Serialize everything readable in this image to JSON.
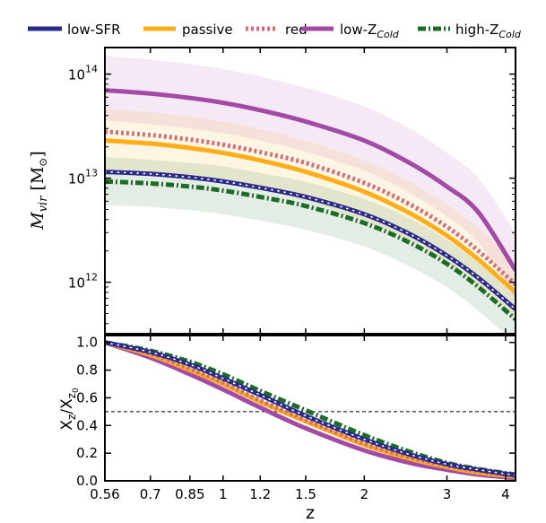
{
  "chart_data": {
    "type": "line",
    "legend_placement": "top",
    "series_styles": [
      {
        "key": "low_sfr",
        "color": "#2b2a8a",
        "dash": "solid",
        "marker_dots": true
      },
      {
        "key": "passive",
        "color": "#ffae1a",
        "dash": "solid"
      },
      {
        "key": "red",
        "color": "#cf6f78",
        "dash": "dotted"
      },
      {
        "key": "low_z",
        "color": "#a24aa6",
        "dash": "solid"
      },
      {
        "key": "high_z",
        "color": "#1c6b26",
        "dash": "dashdot"
      }
    ],
    "legend": [
      {
        "label": "low-SFR",
        "sub": ""
      },
      {
        "label": "passive",
        "sub": ""
      },
      {
        "label": "red",
        "sub": ""
      },
      {
        "label": "low-Z",
        "sub": "Cold"
      },
      {
        "label": "high-Z",
        "sub": "Cold"
      }
    ],
    "x_scale": "log",
    "x_ticks": [
      "0.56",
      "0.7",
      "0.85",
      "1",
      "1.2",
      "1.5",
      "2",
      "3",
      "4"
    ],
    "x_tick_values": [
      0.56,
      0.7,
      0.85,
      1,
      1.2,
      1.5,
      2,
      3,
      4
    ],
    "xlim": [
      0.56,
      4.2
    ],
    "xlabel": "z",
    "top": {
      "y_scale": "log",
      "ylim": [
        320000000000.0,
        180000000000000.0
      ],
      "ylabel_main": "M",
      "ylabel_sub": "vir",
      "ylabel_unit_open": "[M",
      "ylabel_unit_sub": "⊙",
      "ylabel_unit_close": "]",
      "y_tick_base": [
        "10",
        "10",
        "10"
      ],
      "y_tick_exp": [
        "12",
        "13",
        "14"
      ],
      "y_tick_values": [
        1000000000000.0,
        10000000000000.0,
        100000000000000.0
      ],
      "x": [
        0.56,
        0.7,
        0.85,
        1.0,
        1.2,
        1.5,
        2.0,
        2.5,
        3.0,
        3.5,
        4.2
      ],
      "series": {
        "low_sfr": [
          11500000000000.0,
          11000000000000.0,
          10200000000000.0,
          9300000000000.0,
          8100000000000.0,
          6600000000000.0,
          4500000000000.0,
          2900000000000.0,
          1800000000000.0,
          1100000000000.0,
          550000000000.0
        ],
        "passive": [
          23000000000000.0,
          21500000000000.0,
          19500000000000.0,
          17500000000000.0,
          14800000000000.0,
          11500000000000.0,
          7400000000000.0,
          4600000000000.0,
          2800000000000.0,
          1650000000000.0,
          800000000000.0
        ],
        "red": [
          28000000000000.0,
          26000000000000.0,
          23500000000000.0,
          21000000000000.0,
          17800000000000.0,
          14000000000000.0,
          9000000000000.0,
          5600000000000.0,
          3400000000000.0,
          2000000000000.0,
          950000000000.0
        ],
        "low_z": [
          70000000000000.0,
          65000000000000.0,
          59000000000000.0,
          53000000000000.0,
          45000000000000.0,
          35000000000000.0,
          23000000000000.0,
          14000000000000.0,
          8300000000000.0,
          4700000000000.0,
          1300000000000.0
        ],
        "high_z": [
          9300000000000.0,
          8900000000000.0,
          8300000000000.0,
          7600000000000.0,
          6600000000000.0,
          5400000000000.0,
          3700000000000.0,
          2400000000000.0,
          1500000000000.0,
          900000000000.0,
          440000000000.0
        ]
      },
      "bands": {
        "low_z": {
          "lower": [
            36000000000000.0,
            33000000000000.0,
            30000000000000.0,
            27000000000000.0,
            23000000000000.0,
            18000000000000.0,
            11800000000000.0,
            7200000000000.0,
            4300000000000.0,
            2400000000000.0,
            700000000000.0
          ],
          "upper": [
            150000000000000.0,
            138000000000000.0,
            125000000000000.0,
            112000000000000.0,
            95000000000000.0,
            74000000000000.0,
            49000000000000.0,
            30000000000000.0,
            17500000000000.0,
            10000000000000.0,
            3000000000000.0
          ]
        },
        "passive": {
          "lower": [
            12000000000000.0,
            11200000000000.0,
            10200000000000.0,
            9100000000000.0,
            7700000000000.0,
            6000000000000.0,
            3850000000000.0,
            2400000000000.0,
            1460000000000.0,
            860000000000.0,
            420000000000.0
          ],
          "upper": [
            46000000000000.0,
            43000000000000.0,
            39000000000000.0,
            35000000000000.0,
            29500000000000.0,
            23000000000000.0,
            14800000000000.0,
            9200000000000.0,
            5600000000000.0,
            3300000000000.0,
            1600000000000.0
          ]
        },
        "high_z": {
          "lower": [
            5500000000000.0,
            5300000000000.0,
            4900000000000.0,
            4500000000000.0,
            3900000000000.0,
            3200000000000.0,
            2200000000000.0,
            1420000000000.0,
            890000000000.0,
            530000000000.0,
            260000000000.0
          ],
          "upper": [
            16000000000000.0,
            15000000000000.0,
            14000000000000.0,
            13000000000000.0,
            11200000000000.0,
            9200000000000.0,
            6300000000000.0,
            4100000000000.0,
            2550000000000.0,
            1530000000000.0,
            750000000000.0
          ]
        }
      }
    },
    "bottom": {
      "ylim": [
        0.0,
        1.05
      ],
      "y_ticks": [
        "0.0",
        "0.2",
        "0.4",
        "0.6",
        "0.8",
        "1.0"
      ],
      "y_tick_values": [
        0.0,
        0.2,
        0.4,
        0.6,
        0.8,
        1.0
      ],
      "ylabel_x": "X",
      "ylabel_sub1": "z",
      "ylabel_slash": "/X",
      "ylabel_sub2": "z",
      "ylabel_sub3": "0",
      "reference_line": 0.5,
      "x": [
        0.56,
        0.7,
        0.85,
        1.0,
        1.2,
        1.5,
        2.0,
        2.5,
        3.0,
        3.5,
        4.2
      ],
      "series": {
        "low_sfr": [
          1.0,
          0.93,
          0.84,
          0.74,
          0.62,
          0.47,
          0.3,
          0.19,
          0.12,
          0.08,
          0.04
        ],
        "passive": [
          1.0,
          0.91,
          0.8,
          0.7,
          0.57,
          0.43,
          0.26,
          0.16,
          0.1,
          0.06,
          0.03
        ],
        "red": [
          1.0,
          0.92,
          0.81,
          0.71,
          0.58,
          0.44,
          0.27,
          0.17,
          0.11,
          0.07,
          0.035
        ],
        "low_z": [
          1.0,
          0.89,
          0.77,
          0.66,
          0.53,
          0.38,
          0.22,
          0.13,
          0.08,
          0.045,
          0.02
        ],
        "high_z": [
          1.0,
          0.94,
          0.86,
          0.77,
          0.65,
          0.51,
          0.33,
          0.21,
          0.13,
          0.085,
          0.045
        ]
      }
    }
  }
}
